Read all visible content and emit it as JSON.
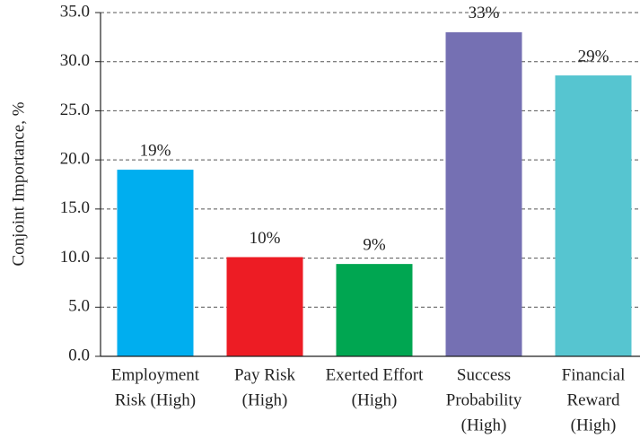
{
  "chart_data": {
    "type": "bar",
    "y_label": "Conjoint Importance, %",
    "categories": [
      [
        "Employment",
        "Risk (High)"
      ],
      [
        "Pay Risk",
        "(High)"
      ],
      [
        "Exerted Effort",
        "(High)"
      ],
      [
        "Success",
        "Probability",
        "(High)"
      ],
      [
        "Financial",
        "Reward",
        "(High)"
      ]
    ],
    "values": [
      19.0,
      10.1,
      9.4,
      33.0,
      28.6
    ],
    "value_labels": [
      "19%",
      "10%",
      "9%",
      "33%",
      "29%"
    ],
    "colors": [
      "#00aeef",
      "#ed1c24",
      "#00a651",
      "#7570b3",
      "#56c5d0"
    ],
    "ylim": [
      0,
      35
    ],
    "yticks": [
      {
        "value": 0,
        "label": "0.0"
      },
      {
        "value": 5,
        "label": "5.0"
      },
      {
        "value": 10,
        "label": "10.0"
      },
      {
        "value": 15,
        "label": "15.0"
      },
      {
        "value": 20,
        "label": "20.0"
      },
      {
        "value": 25,
        "label": "25.0"
      },
      {
        "value": 30,
        "label": "30.0"
      },
      {
        "value": 35,
        "label": "35.0"
      }
    ],
    "grid": true
  }
}
